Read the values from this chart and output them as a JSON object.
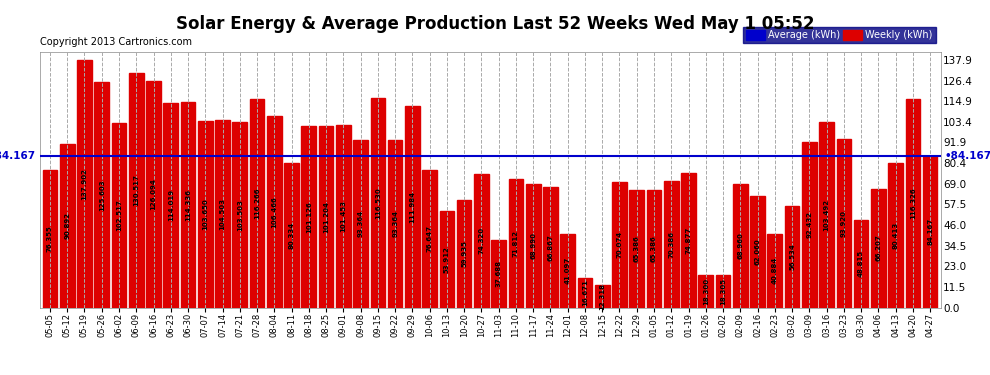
{
  "title": "Solar Energy & Average Production Last 52 Weeks Wed May 1 05:52",
  "copyright": "Copyright 2013 Cartronics.com",
  "average_line": 84.167,
  "average_label": "84.167",
  "bar_color": "#dd0000",
  "avg_line_color": "#0000cc",
  "background_color": "#ffffff",
  "grid_color": "#aaaaaa",
  "ylabel_right": [
    "137.9",
    "126.4",
    "114.9",
    "103.4",
    "91.9",
    "80.4",
    "69.0",
    "57.5",
    "46.0",
    "34.5",
    "23.0",
    "11.5",
    "0.0"
  ],
  "ylim": [
    0,
    142
  ],
  "categories": [
    "05-05",
    "05-12",
    "05-19",
    "05-26",
    "06-02",
    "06-09",
    "06-16",
    "06-23",
    "06-30",
    "07-07",
    "07-14",
    "07-21",
    "07-28",
    "08-04",
    "08-11",
    "08-18",
    "08-25",
    "09-01",
    "09-08",
    "09-15",
    "09-22",
    "09-29",
    "10-06",
    "10-13",
    "10-20",
    "10-27",
    "11-03",
    "11-10",
    "11-17",
    "11-24",
    "12-01",
    "12-08",
    "12-15",
    "12-22",
    "12-29",
    "01-05",
    "01-12",
    "01-19",
    "01-26",
    "02-02",
    "02-09",
    "02-16",
    "02-23",
    "03-02",
    "03-09",
    "03-16",
    "03-23",
    "03-30",
    "04-06",
    "04-13",
    "04-20",
    "04-27"
  ],
  "values": [
    76.355,
    90.892,
    137.902,
    125.603,
    102.517,
    130.517,
    126.094,
    114.019,
    114.336,
    103.65,
    104.503,
    103.503,
    116.266,
    106.466,
    80.334,
    101.126,
    101.204,
    101.453,
    93.364,
    116.53,
    93.364,
    111.984,
    76.647,
    53.912,
    59.935,
    74.32,
    37.688,
    71.812,
    68.99,
    66.867,
    41.097,
    16.671,
    12.318,
    70.074,
    65.386,
    65.386,
    70.386,
    74.877,
    18.3,
    18.305,
    68.96,
    62.06,
    40.884,
    56.534,
    92.432,
    103.492,
    93.92,
    48.815,
    66.207,
    80.413,
    116.326,
    84.167
  ]
}
